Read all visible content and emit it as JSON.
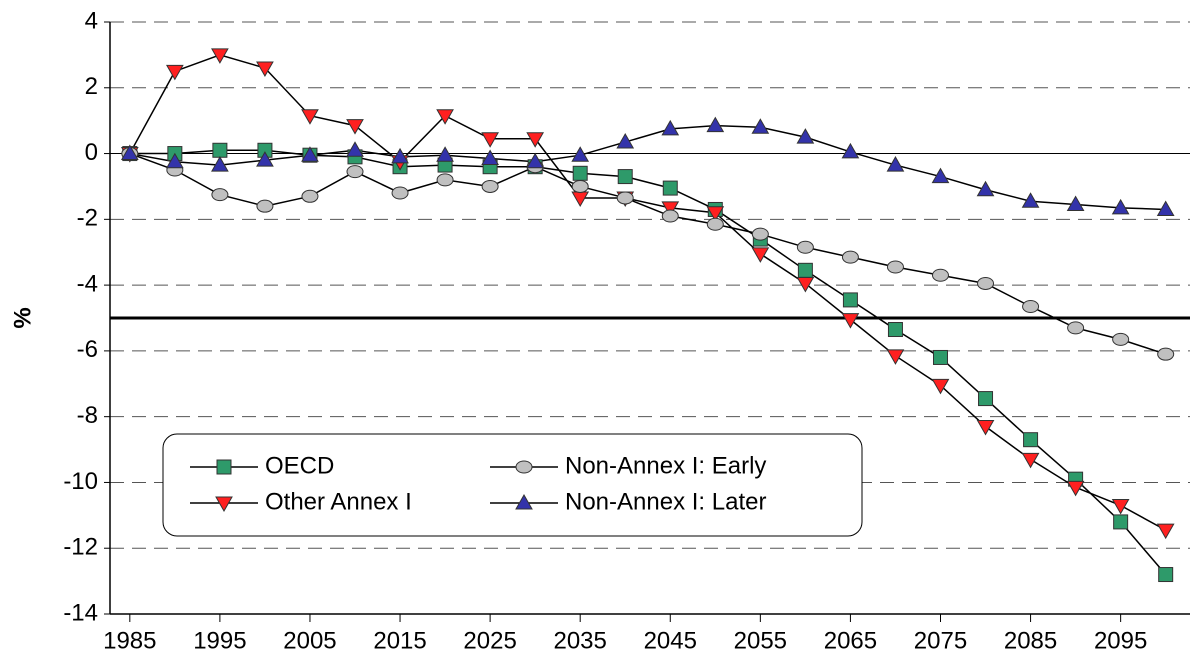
{
  "chart_data": {
    "type": "line",
    "y_label": "%",
    "x": [
      1985,
      1990,
      1995,
      2000,
      2005,
      2010,
      2015,
      2020,
      2025,
      2030,
      2035,
      2040,
      2045,
      2050,
      2055,
      2060,
      2065,
      2070,
      2075,
      2080,
      2085,
      2090,
      2095,
      2100
    ],
    "xlim": [
      1982.8,
      2102.7
    ],
    "xticks": [
      1985,
      1995,
      2005,
      2015,
      2025,
      2035,
      2045,
      2055,
      2065,
      2075,
      2085,
      2095
    ],
    "ylim": [
      -14,
      4
    ],
    "yticks": [
      -14,
      -12,
      -10,
      -8,
      -6,
      -4,
      -2,
      0,
      2,
      4
    ],
    "grid": true,
    "reference_line": -5,
    "series": [
      {
        "name": "OECD",
        "color": "#2e9a6a",
        "marker": "square",
        "values": [
          0,
          0,
          0.1,
          0.1,
          -0.05,
          -0.1,
          -0.4,
          -0.35,
          -0.4,
          -0.4,
          -0.6,
          -0.7,
          -1.05,
          -1.7,
          -2.6,
          -3.55,
          -4.45,
          -5.35,
          -6.2,
          -7.45,
          -8.7,
          -9.9,
          -11.2,
          -12.8
        ]
      },
      {
        "name": "Other Annex I",
        "color": "#ff2020",
        "marker": "triangle-down",
        "values": [
          0,
          2.5,
          3.0,
          2.6,
          1.15,
          0.85,
          -0.25,
          1.15,
          0.45,
          0.45,
          -1.35,
          -1.35,
          -1.65,
          -1.8,
          -3.05,
          -3.95,
          -5.05,
          -6.15,
          -7.05,
          -8.3,
          -9.3,
          -10.15,
          -10.7,
          -11.45
        ]
      },
      {
        "name": "Non-Annex I: Early",
        "color": "#c0c0c0",
        "marker": "circle",
        "values": [
          0,
          -0.5,
          -1.25,
          -1.6,
          -1.3,
          -0.55,
          -1.2,
          -0.8,
          -1.0,
          -0.4,
          -1.0,
          -1.35,
          -1.9,
          -2.15,
          -2.45,
          -2.85,
          -3.15,
          -3.45,
          -3.7,
          -3.95,
          -4.65,
          -5.3,
          -5.65,
          -6.1
        ]
      },
      {
        "name": "Non-Annex I: Later",
        "color": "#3333aa",
        "marker": "triangle-up",
        "values": [
          0,
          -0.25,
          -0.35,
          -0.2,
          -0.05,
          0.1,
          -0.1,
          -0.05,
          -0.15,
          -0.25,
          -0.05,
          0.35,
          0.75,
          0.85,
          0.8,
          0.5,
          0.05,
          -0.35,
          -0.7,
          -1.1,
          -1.45,
          -1.55,
          -1.65,
          -1.7
        ]
      }
    ]
  }
}
